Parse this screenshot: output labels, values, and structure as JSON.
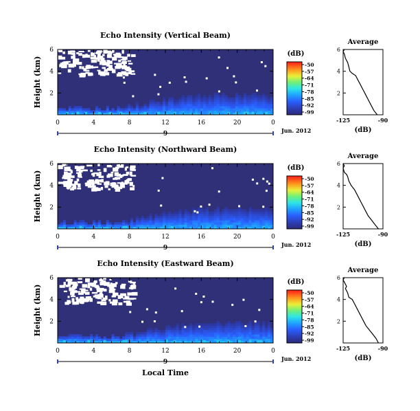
{
  "chart_data": [
    {
      "type": "heatmap",
      "title": "Echo Intensity (Vertical Beam)",
      "ylabel": "Height (km)",
      "xticks": [
        "0",
        "4",
        "8",
        "12",
        "16",
        "20",
        "0"
      ],
      "yticks": [
        "2",
        "4",
        "6"
      ],
      "xlim": [
        0,
        24
      ],
      "ylim": [
        0,
        6
      ],
      "date_marker": "9",
      "date_label": "Jun. 2012",
      "colorbar": {
        "unit": "(dB)",
        "ticks": [
          "-50",
          "-57",
          "-64",
          "-71",
          "-78",
          "-85",
          "-92",
          "-99"
        ],
        "range": [
          -99,
          -50
        ]
      },
      "average": {
        "title": "Average",
        "xlabel": "(dB)",
        "xticks": [
          "-125",
          "-90"
        ],
        "xlim": [
          -125,
          -90
        ],
        "yticks": [
          "2",
          "4",
          "6"
        ],
        "ylim": [
          0,
          6
        ],
        "x": [
          -95,
          -98,
          -100,
          -102,
          -104,
          -106,
          -108,
          -110,
          -112,
          -114,
          -117,
          -119,
          -120,
          -121,
          -123,
          -124,
          -125,
          -124
        ],
        "y": [
          0,
          0.4,
          0.8,
          1.2,
          1.6,
          2.0,
          2.4,
          2.8,
          3.2,
          3.6,
          3.8,
          4.0,
          4.4,
          4.8,
          5.2,
          5.6,
          5.8,
          6.0
        ]
      }
    },
    {
      "type": "heatmap",
      "title": "Echo Intensity (Northward Beam)",
      "ylabel": "Height (km)",
      "xticks": [
        "0",
        "4",
        "8",
        "12",
        "16",
        "20",
        "0"
      ],
      "yticks": [
        "2",
        "4",
        "6"
      ],
      "xlim": [
        0,
        24
      ],
      "ylim": [
        0,
        6
      ],
      "date_marker": "9",
      "date_label": "Jun. 2012",
      "colorbar": {
        "unit": "(dB)",
        "ticks": [
          "-50",
          "-57",
          "-64",
          "-71",
          "-78",
          "-85",
          "-92",
          "-99"
        ],
        "range": [
          -99,
          -50
        ]
      },
      "average": {
        "title": "Average",
        "xlabel": "(dB)",
        "xticks": [
          "-125",
          "-90"
        ],
        "xlim": [
          -125,
          -90
        ],
        "yticks": [
          "2",
          "4",
          "6"
        ],
        "ylim": [
          0,
          6
        ],
        "x": [
          -94,
          -97,
          -100,
          -103,
          -105,
          -107,
          -109,
          -111,
          -113,
          -115,
          -118,
          -120,
          -121,
          -122,
          -124,
          -125,
          -124,
          -125
        ],
        "y": [
          0,
          0.4,
          0.8,
          1.2,
          1.6,
          2.0,
          2.4,
          2.8,
          3.2,
          3.6,
          4.0,
          4.4,
          4.8,
          5.0,
          5.2,
          5.6,
          5.8,
          6.0
        ]
      }
    },
    {
      "type": "heatmap",
      "title": "Echo Intensity (Eastward Beam)",
      "ylabel": "Height (km)",
      "xlabel": "Local Time",
      "xticks": [
        "0",
        "4",
        "8",
        "12",
        "16",
        "20",
        "0"
      ],
      "yticks": [
        "2",
        "4",
        "6"
      ],
      "xlim": [
        0,
        24
      ],
      "ylim": [
        0,
        6
      ],
      "date_marker": "9",
      "date_label": "Jun. 2012",
      "colorbar": {
        "unit": "(dB)",
        "ticks": [
          "-50",
          "-57",
          "-64",
          "-71",
          "-78",
          "-85",
          "-92",
          "-99"
        ],
        "range": [
          -99,
          -50
        ]
      },
      "average": {
        "title": "Average",
        "xlabel": "(dB)",
        "xticks": [
          "-125",
          "-90"
        ],
        "xlim": [
          -125,
          -90
        ],
        "yticks": [
          "2",
          "4",
          "6"
        ],
        "ylim": [
          0,
          6
        ],
        "x": [
          -94,
          -96,
          -99,
          -102,
          -105,
          -107,
          -109,
          -111,
          -113,
          -115,
          -117,
          -120,
          -121,
          -123,
          -122,
          -124,
          -125,
          -124
        ],
        "y": [
          0,
          0.4,
          0.8,
          1.2,
          1.6,
          2.0,
          2.4,
          2.8,
          3.2,
          3.6,
          4.0,
          4.2,
          4.6,
          5.0,
          5.2,
          5.6,
          5.8,
          6.0
        ]
      }
    }
  ]
}
